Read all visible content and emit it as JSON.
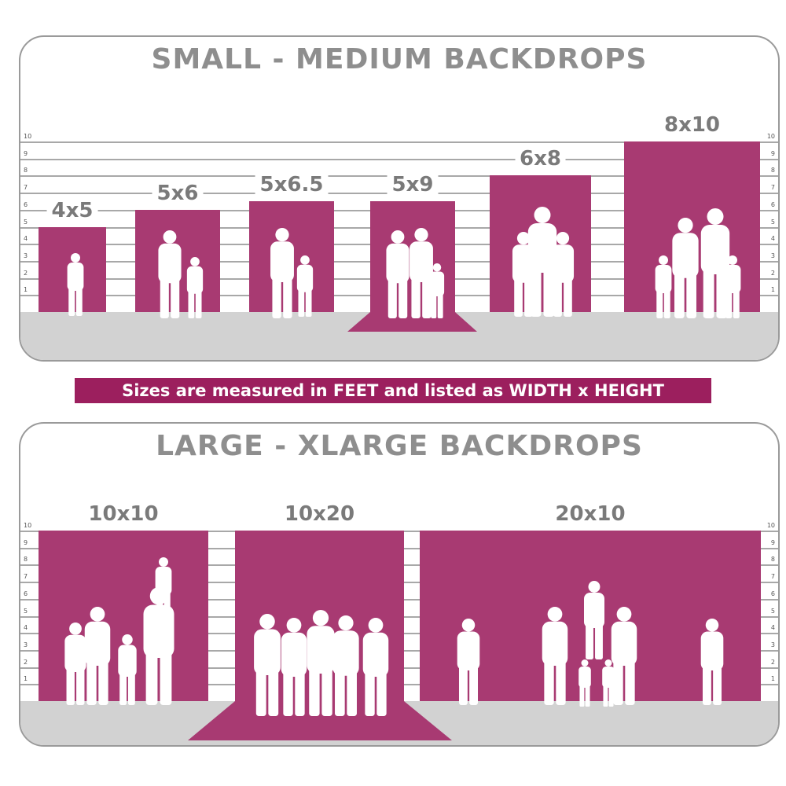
{
  "top_panel": {
    "title": "SMALL - MEDIUM BACKDROPS",
    "scale_ticks": [
      "1",
      "2",
      "3",
      "4",
      "5",
      "6",
      "7",
      "8",
      "9",
      "10"
    ],
    "backdrops": [
      {
        "label": "4x5",
        "width_ft": 4,
        "height_ft": 5
      },
      {
        "label": "5x6",
        "width_ft": 5,
        "height_ft": 6
      },
      {
        "label": "5x6.5",
        "width_ft": 5,
        "height_ft": 6.5
      },
      {
        "label": "5x9",
        "width_ft": 5,
        "height_ft": 9
      },
      {
        "label": "6x8",
        "width_ft": 6,
        "height_ft": 8
      },
      {
        "label": "8x10",
        "width_ft": 8,
        "height_ft": 10
      }
    ]
  },
  "banner": {
    "text": "Sizes are measured in FEET and listed as WIDTH x HEIGHT"
  },
  "bottom_panel": {
    "title": "LARGE - XLARGE BACKDROPS",
    "scale_ticks": [
      "1",
      "2",
      "3",
      "4",
      "5",
      "6",
      "7",
      "8",
      "9",
      "10"
    ],
    "backdrops": [
      {
        "label": "10x10",
        "width_ft": 10,
        "height_ft": 10
      },
      {
        "label": "10x20",
        "width_ft": 10,
        "height_ft": 20
      },
      {
        "label": "20x10",
        "width_ft": 20,
        "height_ft": 10
      }
    ]
  },
  "colors": {
    "backdrop": "#a83a72",
    "banner": "#9c1f5e",
    "title": "#8e8e8e",
    "floor": "#d2d2d2"
  }
}
